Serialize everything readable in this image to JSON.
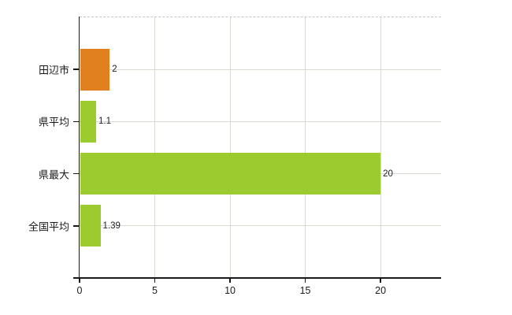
{
  "chart_data": {
    "type": "bar",
    "orientation": "horizontal",
    "title": "",
    "xlabel": "",
    "ylabel": "",
    "categories": [
      "田辺市",
      "県平均",
      "県最大",
      "全国平均"
    ],
    "values": [
      2,
      1.1,
      20,
      1.39
    ],
    "value_labels": [
      "2",
      "1.1",
      "20",
      "1.39"
    ],
    "bar_colors": [
      "#e0801f",
      "#9ccb2f",
      "#9ccb2f",
      "#9ccb2f"
    ],
    "xlim": [
      0,
      24
    ],
    "xticks": [
      0,
      5,
      10,
      15,
      20
    ],
    "xtick_labels": [
      "0",
      "5",
      "10",
      "15",
      "20"
    ],
    "grid": true,
    "legend": false
  },
  "colors": {
    "orange_bar": "#e0801f",
    "green_bar": "#9ccb2f",
    "gridline": "#d7dbd2",
    "top_border": "#c6c6c6",
    "axis": "#1a1a1a",
    "text": "#1a1a1a",
    "background": "#ffffff"
  }
}
